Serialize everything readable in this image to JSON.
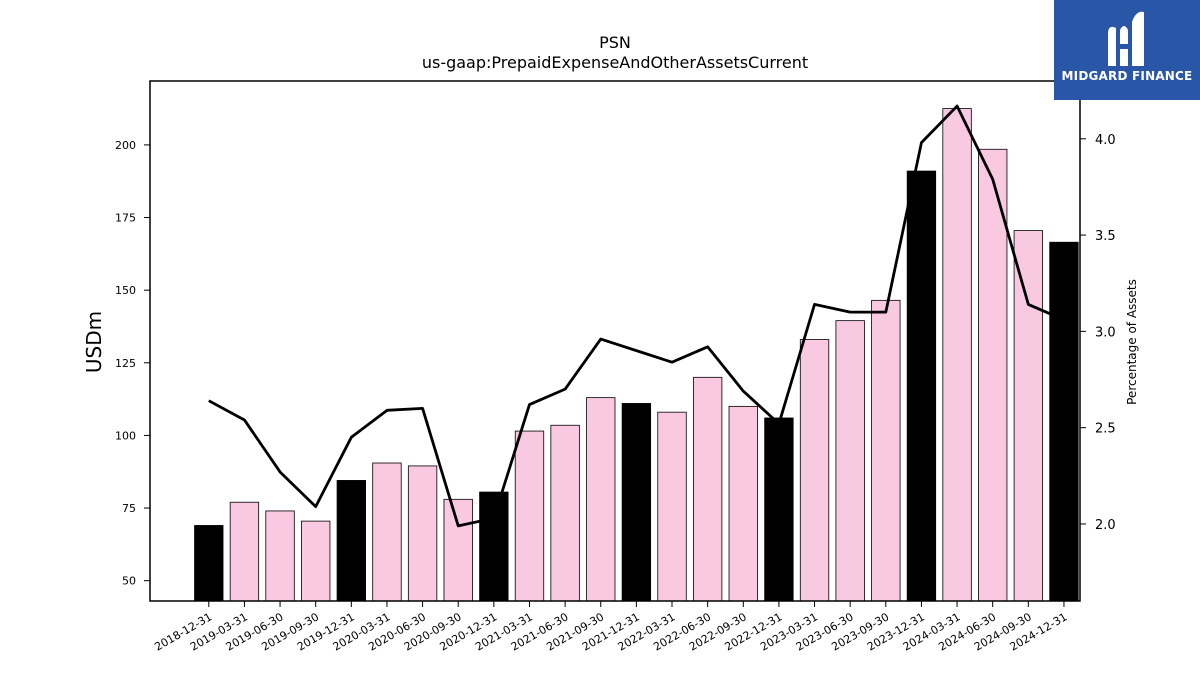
{
  "logo": {
    "text": "MIDGARD FINANCE",
    "icon": "midgard-m-logo-icon",
    "background": "#2a56a8"
  },
  "chart_data": {
    "type": "bar",
    "title": "PSN",
    "subtitle": "us-gaap:PrepaidExpenseAndOtherAssetsCurrent",
    "ylabel": "USDm",
    "ylabel_right": "Percentage of Assets",
    "categories": [
      "2018-12-31",
      "2019-03-31",
      "2019-06-30",
      "2019-09-30",
      "2019-12-31",
      "2020-03-31",
      "2020-06-30",
      "2020-09-30",
      "2020-12-31",
      "2021-03-31",
      "2021-06-30",
      "2021-09-30",
      "2021-12-31",
      "2022-03-31",
      "2022-06-30",
      "2022-09-30",
      "2022-12-31",
      "2023-03-31",
      "2023-06-30",
      "2023-09-30",
      "2023-12-31",
      "2024-03-31",
      "2024-06-30",
      "2024-09-30",
      "2024-12-31"
    ],
    "series": [
      {
        "type": "bar",
        "axis": "left",
        "values": [
          69.0,
          77.0,
          74.0,
          70.5,
          84.5,
          90.5,
          89.5,
          78.0,
          80.5,
          101.5,
          103.5,
          113.0,
          111.0,
          108.0,
          120.0,
          110.0,
          106.0,
          133.0,
          139.5,
          146.5,
          191.0,
          212.5,
          198.5,
          170.5,
          166.5
        ]
      },
      {
        "type": "line",
        "axis": "right",
        "values": [
          2.64,
          2.54,
          2.27,
          2.09,
          2.45,
          2.59,
          2.6,
          1.99,
          2.03,
          2.62,
          2.7,
          2.96,
          2.9,
          2.84,
          2.92,
          2.69,
          2.52,
          3.14,
          3.1,
          3.1,
          3.98,
          4.17,
          3.79,
          3.14,
          3.06
        ]
      }
    ],
    "highlight_period": "12-31",
    "colors": {
      "bar_default": "#f9c9e2",
      "bar_highlight": "#000000",
      "line": "#000000"
    },
    "ylim": [
      43,
      222
    ],
    "yticks": [
      50,
      75,
      100,
      125,
      150,
      175,
      200
    ],
    "y2lim": [
      1.6,
      4.3
    ],
    "y2ticks": [
      2.0,
      2.5,
      3.0,
      3.5,
      4.0
    ],
    "y2tick_labels": [
      "2.0",
      "2.5",
      "3.0",
      "3.5",
      "4.0"
    ]
  }
}
